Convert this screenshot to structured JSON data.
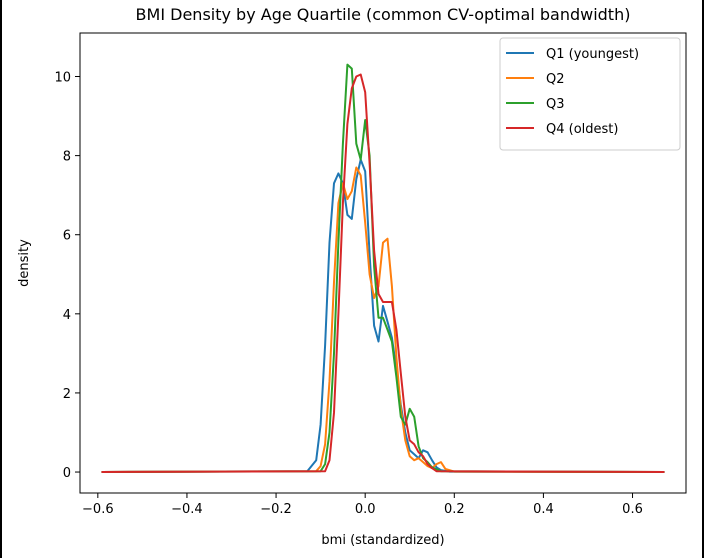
{
  "chart_data": {
    "type": "line",
    "title": "BMI Density by Age Quartile (common CV-optimal bandwidth)",
    "xlabel": "bmi (standardized)",
    "ylabel": "density",
    "xlim": [
      -0.64,
      0.72
    ],
    "ylim": [
      -0.53,
      11.1
    ],
    "xticks": [
      -0.6,
      -0.4,
      -0.2,
      0.0,
      0.2,
      0.4,
      0.6
    ],
    "xtick_labels": [
      "−0.6",
      "−0.4",
      "−0.2",
      "0.0",
      "0.2",
      "0.4",
      "0.6"
    ],
    "yticks": [
      0,
      2,
      4,
      6,
      8,
      10
    ],
    "ytick_labels": [
      "0",
      "2",
      "4",
      "6",
      "8",
      "10"
    ],
    "grid": false,
    "legend_position": "top-right",
    "series": [
      {
        "name": "Q1 (youngest)",
        "color": "#1f77b4",
        "x": [
          -0.59,
          -0.13,
          -0.11,
          -0.1,
          -0.09,
          -0.08,
          -0.07,
          -0.06,
          -0.05,
          -0.04,
          -0.03,
          -0.02,
          -0.01,
          0.0,
          0.01,
          0.02,
          0.03,
          0.04,
          0.05,
          0.06,
          0.07,
          0.08,
          0.09,
          0.1,
          0.11,
          0.12,
          0.13,
          0.14,
          0.15,
          0.16,
          0.17,
          0.19,
          0.67
        ],
        "y": [
          0,
          0.02,
          0.3,
          1.2,
          3.2,
          5.8,
          7.3,
          7.55,
          7.3,
          6.5,
          6.4,
          7.4,
          7.9,
          7.6,
          5.5,
          3.7,
          3.3,
          4.2,
          3.8,
          3.4,
          2.6,
          1.7,
          1.0,
          0.55,
          0.45,
          0.35,
          0.55,
          0.5,
          0.3,
          0.12,
          0.05,
          0.01,
          0
        ]
      },
      {
        "name": "Q2",
        "color": "#ff7f0e",
        "x": [
          -0.59,
          -0.11,
          -0.1,
          -0.09,
          -0.08,
          -0.07,
          -0.06,
          -0.05,
          -0.04,
          -0.03,
          -0.02,
          -0.01,
          0.0,
          0.01,
          0.02,
          0.03,
          0.04,
          0.05,
          0.06,
          0.07,
          0.08,
          0.09,
          0.1,
          0.11,
          0.12,
          0.13,
          0.14,
          0.15,
          0.16,
          0.17,
          0.18,
          0.2,
          0.67
        ],
        "y": [
          0,
          0.02,
          0.15,
          0.7,
          2.3,
          4.8,
          6.8,
          7.3,
          6.9,
          7.1,
          7.7,
          7.5,
          6.3,
          5.0,
          4.4,
          4.7,
          5.8,
          5.9,
          4.7,
          2.9,
          1.6,
          0.8,
          0.4,
          0.3,
          0.35,
          0.25,
          0.15,
          0.1,
          0.2,
          0.25,
          0.08,
          0.01,
          0
        ]
      },
      {
        "name": "Q3",
        "color": "#2ca02c",
        "x": [
          -0.59,
          -0.1,
          -0.09,
          -0.08,
          -0.07,
          -0.06,
          -0.05,
          -0.04,
          -0.03,
          -0.02,
          -0.01,
          0.0,
          0.01,
          0.02,
          0.03,
          0.04,
          0.05,
          0.06,
          0.07,
          0.08,
          0.09,
          0.1,
          0.11,
          0.12,
          0.13,
          0.14,
          0.15,
          0.17,
          0.67
        ],
        "y": [
          0,
          0.02,
          0.2,
          1.0,
          3.0,
          5.8,
          8.3,
          10.3,
          10.2,
          8.3,
          7.9,
          8.9,
          8.0,
          5.2,
          3.9,
          3.9,
          3.6,
          3.3,
          2.4,
          1.4,
          1.2,
          1.6,
          1.4,
          0.65,
          0.35,
          0.25,
          0.12,
          0.02,
          0
        ]
      },
      {
        "name": "Q4 (oldest)",
        "color": "#d62728",
        "x": [
          -0.59,
          -0.09,
          -0.08,
          -0.07,
          -0.06,
          -0.05,
          -0.04,
          -0.03,
          -0.02,
          -0.01,
          0.0,
          0.01,
          0.02,
          0.03,
          0.04,
          0.05,
          0.06,
          0.07,
          0.08,
          0.09,
          0.1,
          0.11,
          0.12,
          0.13,
          0.14,
          0.15,
          0.16,
          0.67
        ],
        "y": [
          0,
          0.02,
          0.3,
          1.5,
          4.0,
          6.8,
          8.8,
          9.7,
          10.0,
          10.05,
          9.6,
          7.8,
          5.6,
          4.5,
          4.3,
          4.3,
          4.3,
          3.6,
          2.5,
          1.4,
          0.8,
          0.7,
          0.5,
          0.4,
          0.2,
          0.1,
          0.02,
          0
        ]
      }
    ]
  }
}
